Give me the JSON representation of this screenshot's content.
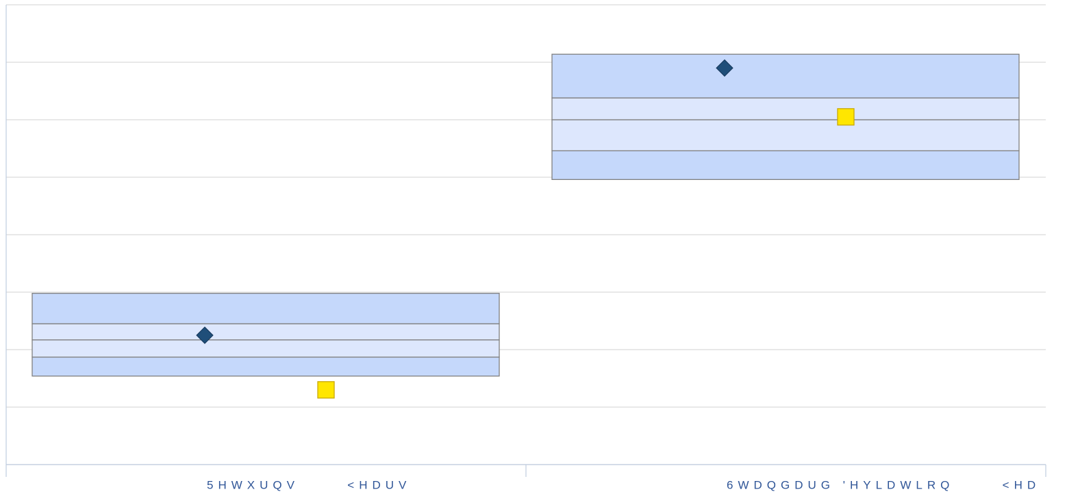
{
  "chart_data": {
    "type": "box",
    "categories": [
      "5HWXUQV      <HDUV",
      "6WDQGDUG 'HYLDWLRQ      <HD"
    ],
    "boxes": [
      {
        "min": 1.54,
        "q1": 1.87,
        "median": 2.17,
        "q3": 2.45,
        "max": 2.98
      },
      {
        "min": 4.96,
        "q1": 5.46,
        "median": 6.0,
        "q3": 6.38,
        "max": 7.14
      }
    ],
    "box_colors": {
      "outer": "#c5d8fb",
      "inner": "#dde7fd",
      "stroke": "#7f7f7f"
    },
    "markers": [
      {
        "shape": "diamond",
        "color": "#1f4e79",
        "values": [
          2.25,
          6.9
        ]
      },
      {
        "shape": "square",
        "color": "#ffe600",
        "values": [
          1.3,
          6.05
        ]
      }
    ],
    "ylim": [
      0,
      8
    ],
    "yticks": [
      0,
      1,
      2,
      3,
      4,
      5,
      6,
      7,
      8
    ],
    "grid": true
  }
}
